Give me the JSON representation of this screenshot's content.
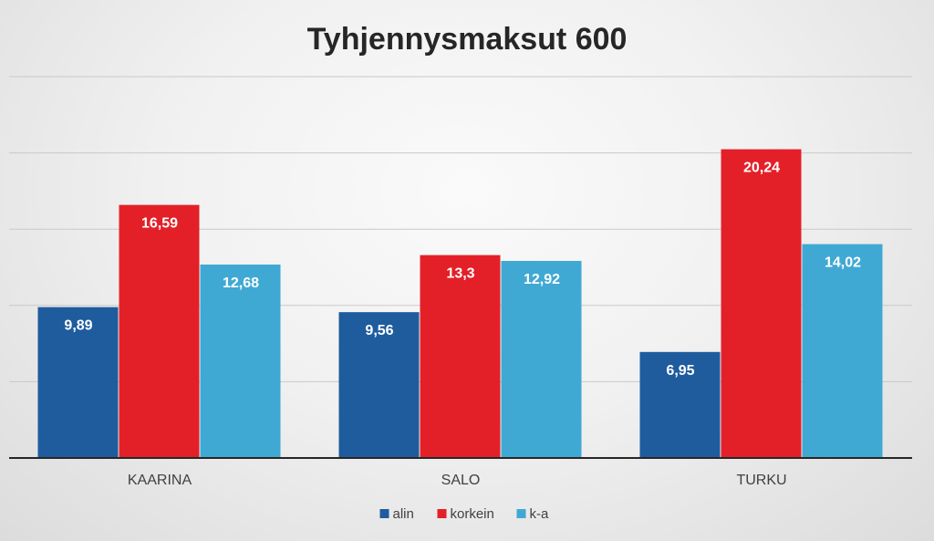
{
  "chart_data": {
    "type": "bar",
    "title": "Tyhjennysmaksut 600",
    "categories": [
      "KAARINA",
      "SALO",
      "TURKU"
    ],
    "series": [
      {
        "name": "alin",
        "color": "#1f5c9e",
        "values": [
          9.89,
          9.56,
          6.95
        ],
        "labels": [
          "9,89",
          "9,56",
          "6,95"
        ]
      },
      {
        "name": "korkein",
        "color": "#e32028",
        "values": [
          16.59,
          13.3,
          20.24
        ],
        "labels": [
          "16,59",
          "13,3",
          "20,24"
        ]
      },
      {
        "name": "k-a",
        "color": "#40a9d3",
        "values": [
          12.68,
          12.92,
          14.02
        ],
        "labels": [
          "12,68",
          "12,92",
          "14,02"
        ]
      }
    ],
    "ylim": [
      0,
      25
    ],
    "grid": true,
    "legend": "bottom"
  }
}
